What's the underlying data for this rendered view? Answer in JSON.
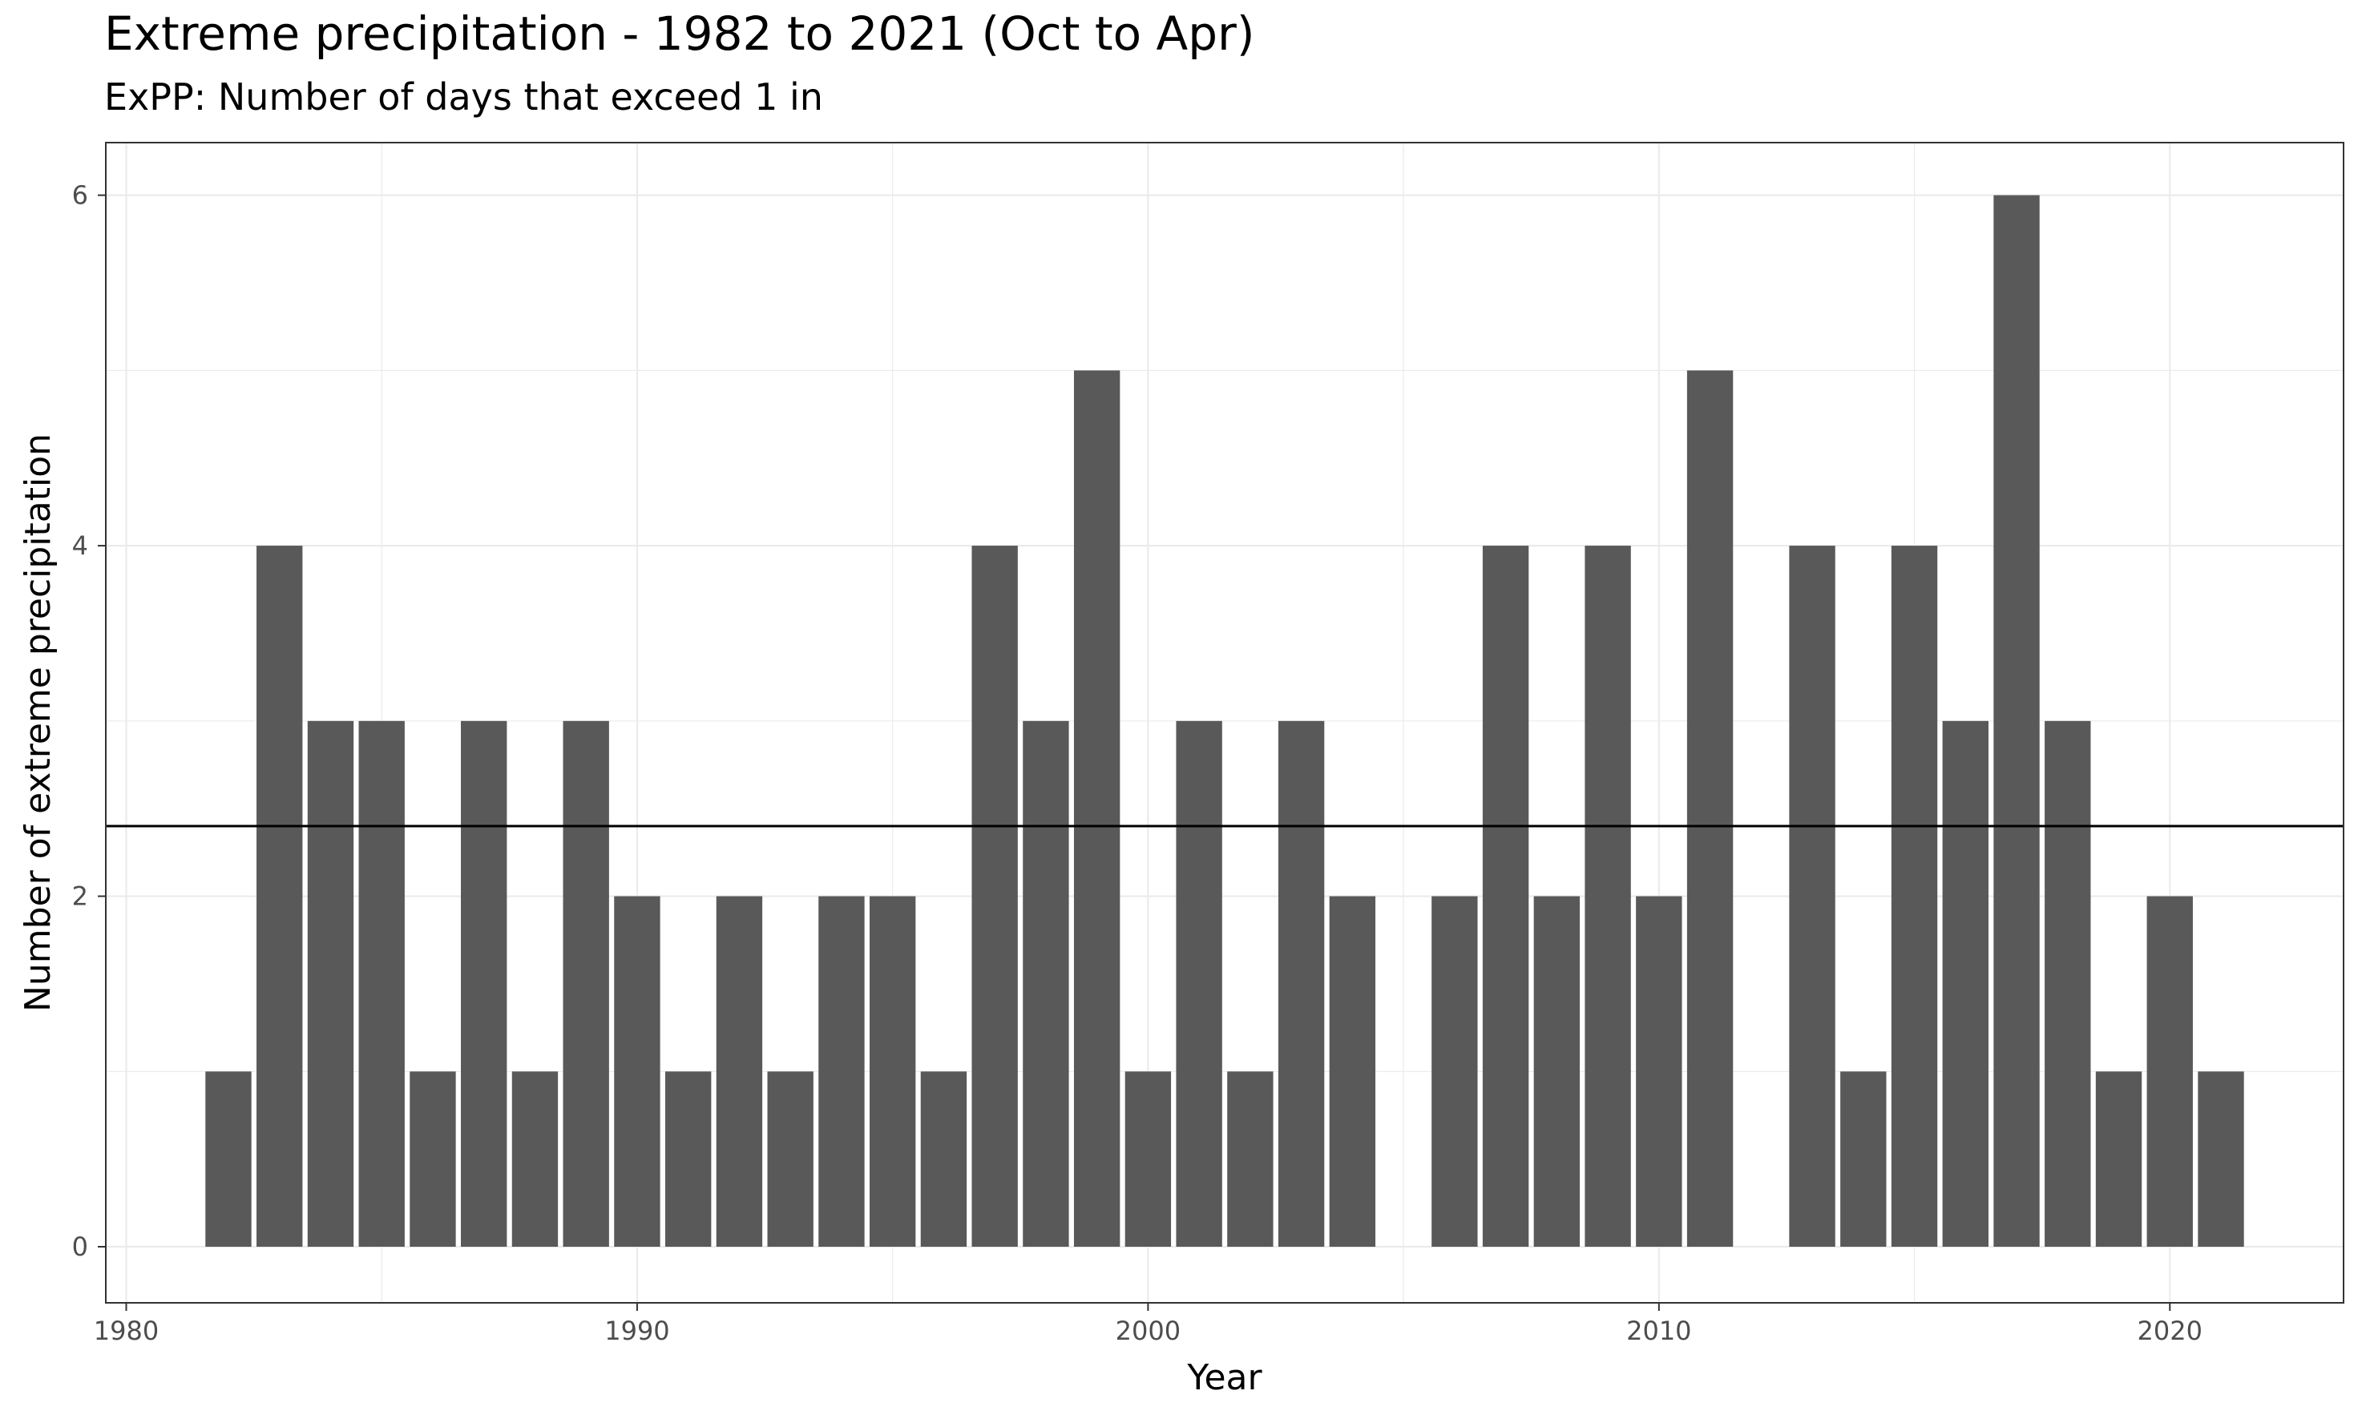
{
  "chart_data": {
    "type": "bar",
    "title": "Extreme precipitation - 1982 to 2021 (Oct to Apr)",
    "subtitle": "ExPP: Number of days that exceed 1 in",
    "xlabel": "Year",
    "ylabel": "Number of extreme precipitation",
    "x": [
      1982,
      1983,
      1984,
      1985,
      1986,
      1987,
      1988,
      1989,
      1990,
      1991,
      1992,
      1993,
      1994,
      1995,
      1996,
      1997,
      1998,
      1999,
      2000,
      2001,
      2002,
      2003,
      2004,
      2005,
      2006,
      2007,
      2008,
      2009,
      2010,
      2011,
      2012,
      2013,
      2014,
      2015,
      2016,
      2017,
      2018,
      2019,
      2020,
      2021
    ],
    "values": [
      1,
      4,
      3,
      3,
      1,
      3,
      1,
      3,
      2,
      1,
      2,
      1,
      2,
      2,
      1,
      4,
      3,
      5,
      1,
      3,
      1,
      3,
      2,
      0,
      2,
      4,
      2,
      4,
      2,
      5,
      0,
      4,
      1,
      4,
      3,
      6,
      3,
      1,
      2,
      1
    ],
    "reference_line": 2.4,
    "xlim": [
      1979.6,
      1823.4
    ],
    "ylim": [
      -0.32,
      6.3
    ],
    "x_ticks": [
      1980,
      1990,
      2000,
      2010,
      2020
    ],
    "y_ticks": [
      0,
      2,
      4,
      6
    ],
    "grid": true,
    "bar_color": "#595959",
    "line_color": "#000000",
    "grid_color": "#ebebeb"
  }
}
